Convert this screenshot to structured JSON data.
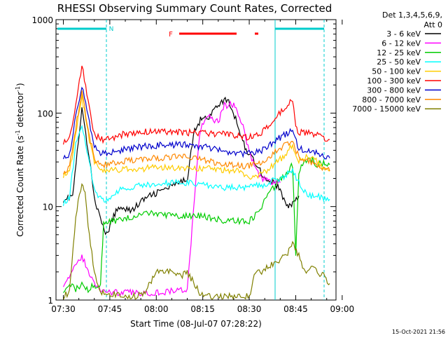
{
  "chart_data": {
    "type": "line",
    "title": "RHESSI Observing Summary Count Rates, Corrected",
    "xlabel": "Start Time (08-Jul-07 07:28:22)",
    "ylabel_main": "Corrected Count Rate (s",
    "ylabel_sup1": "-1",
    "ylabel_mid": " detector",
    "ylabel_sup2": "-1",
    "ylabel_end": ")",
    "y_scale": "log",
    "ylim": [
      1,
      1000
    ],
    "xlim_minutes": [
      -2.37,
      88.0
    ],
    "x_ticks": [
      {
        "label": "07:30",
        "min": 0
      },
      {
        "label": "07:45",
        "min": 15
      },
      {
        "label": "08:00",
        "min": 30
      },
      {
        "label": "08:15",
        "min": 45
      },
      {
        "label": "08:30",
        "min": 60
      },
      {
        "label": "08:45",
        "min": 75
      },
      {
        "label": "09:00",
        "min": 90
      }
    ],
    "y_ticks": [
      {
        "label": "1",
        "v": 1
      },
      {
        "label": "10",
        "v": 10
      },
      {
        "label": "100",
        "v": 100
      },
      {
        "label": "1000",
        "v": 1000
      }
    ],
    "legend_title": "Det 1,3,4,5,6,9,",
    "legend_subtitle": "Att 0",
    "legend_placement": "right",
    "series": [
      {
        "name": "3 - 6 keV",
        "color": "#000000",
        "x": [
          0,
          3,
          6,
          8,
          10,
          12,
          14,
          17,
          19,
          22,
          26,
          30,
          34,
          38,
          40,
          42,
          45,
          47,
          50,
          53,
          56,
          59,
          62,
          65,
          68,
          70,
          72,
          73,
          74,
          76
        ],
        "y": [
          12,
          13,
          110,
          40,
          13,
          7,
          5,
          9,
          10,
          9,
          12,
          14,
          16,
          18,
          20,
          60,
          95,
          90,
          125,
          140,
          80,
          40,
          30,
          20,
          18,
          15,
          10,
          10,
          11,
          13
        ]
      },
      {
        "name": "6 - 12 keV",
        "color": "#ff00ff",
        "x": [
          0,
          3,
          6,
          8,
          10,
          12,
          16,
          20,
          30,
          40,
          44,
          46,
          48,
          50,
          52,
          55,
          58,
          60,
          62,
          64,
          66,
          68,
          70
        ],
        "y": [
          1.5,
          2,
          3,
          2,
          1.5,
          1.3,
          1.2,
          1.2,
          1.2,
          1.3,
          60,
          95,
          85,
          80,
          120,
          125,
          70,
          40,
          25,
          20,
          19,
          18,
          18
        ]
      },
      {
        "name": "12 - 25 keV",
        "color": "#00cc00",
        "x": [
          0,
          2,
          4,
          6,
          8,
          10,
          11,
          12,
          13,
          16,
          20,
          24,
          28,
          32,
          36,
          40,
          44,
          48,
          52,
          56,
          60,
          62,
          64,
          66,
          68,
          70,
          72,
          74,
          75,
          76,
          78,
          80,
          82,
          84,
          86
        ],
        "y": [
          1.3,
          1.5,
          1.3,
          1.5,
          1.3,
          1.5,
          1.3,
          1.5,
          6.5,
          7,
          7.5,
          8,
          8.5,
          8,
          8,
          8,
          8,
          7.5,
          7,
          7,
          7,
          8,
          10,
          13,
          16,
          20,
          23,
          28,
          3,
          24,
          30,
          32,
          28,
          30,
          28
        ]
      },
      {
        "name": "25 - 50 keV",
        "color": "#00ffff",
        "x": [
          0,
          2,
          4,
          6,
          8,
          10,
          12,
          14,
          18,
          22,
          26,
          30,
          34,
          38,
          42,
          46,
          50,
          54,
          58,
          62,
          64,
          66,
          68,
          70,
          72,
          74,
          76,
          78,
          80,
          82,
          84,
          86
        ],
        "y": [
          11,
          12,
          50,
          75,
          35,
          15,
          12,
          12,
          15,
          16,
          17,
          17,
          18,
          18,
          18,
          17,
          16,
          16,
          16,
          17,
          17,
          18,
          19,
          20,
          22,
          25,
          18,
          14,
          13,
          13,
          12,
          12
        ]
      },
      {
        "name": "50 - 100 keV",
        "color": "#ffcc00",
        "x": [
          0,
          2,
          4,
          6,
          8,
          10,
          12,
          14,
          20,
          30,
          40,
          50,
          56,
          58,
          60,
          62,
          64,
          66,
          68,
          70,
          72,
          74,
          76,
          78,
          80,
          82,
          84,
          86
        ],
        "y": [
          22,
          24,
          60,
          150,
          60,
          30,
          24,
          24,
          25,
          26,
          26,
          25,
          24,
          22,
          20,
          21,
          22,
          25,
          28,
          32,
          38,
          45,
          30,
          34,
          33,
          30,
          26,
          24
        ]
      },
      {
        "name": "100 - 300 keV",
        "color": "#ff0000",
        "x": [
          0,
          2,
          4,
          6,
          8,
          10,
          12,
          14,
          16,
          20,
          25,
          30,
          35,
          40,
          45,
          50,
          55,
          60,
          62,
          64,
          66,
          68,
          70,
          72,
          74,
          75,
          76,
          78,
          80,
          82,
          84,
          86
        ],
        "y": [
          50,
          55,
          120,
          320,
          140,
          60,
          52,
          52,
          55,
          60,
          63,
          64,
          63,
          62,
          62,
          60,
          58,
          55,
          57,
          62,
          70,
          85,
          100,
          115,
          140,
          70,
          62,
          62,
          60,
          58,
          55,
          52
        ]
      },
      {
        "name": "300 - 800 keV",
        "color": "#0000cc",
        "x": [
          0,
          2,
          4,
          6,
          8,
          10,
          12,
          14,
          18,
          22,
          26,
          30,
          34,
          38,
          42,
          46,
          50,
          54,
          58,
          62,
          64,
          66,
          68,
          70,
          72,
          74,
          76,
          78,
          80,
          82,
          84,
          86
        ],
        "y": [
          35,
          36,
          90,
          200,
          90,
          45,
          38,
          38,
          40,
          42,
          44,
          45,
          46,
          46,
          45,
          43,
          40,
          38,
          37,
          38,
          40,
          44,
          50,
          55,
          60,
          65,
          42,
          40,
          38,
          37,
          35,
          33
        ]
      },
      {
        "name": "800 - 7000 keV",
        "color": "#ff8800",
        "x": [
          0,
          2,
          4,
          6,
          8,
          10,
          12,
          14,
          18,
          22,
          26,
          30,
          34,
          38,
          42,
          46,
          50,
          54,
          58,
          62,
          64,
          66,
          68,
          70,
          72,
          74,
          76,
          78,
          80,
          82,
          84,
          86
        ],
        "y": [
          24,
          26,
          70,
          170,
          70,
          32,
          28,
          28,
          30,
          31,
          32,
          33,
          34,
          34,
          33,
          31,
          29,
          28,
          27,
          28,
          30,
          33,
          38,
          42,
          46,
          50,
          34,
          32,
          30,
          28,
          26,
          24
        ]
      },
      {
        "name": "7000 - 15000 keV",
        "color": "#808000",
        "x": [
          0,
          2,
          4,
          6,
          7,
          8,
          10,
          12,
          14,
          20,
          24,
          26,
          30,
          34,
          38,
          40,
          44,
          48,
          52,
          56,
          60,
          62,
          64,
          68,
          72,
          74,
          76,
          78,
          80,
          82,
          84,
          86
        ],
        "y": [
          1.1,
          1.2,
          8,
          18,
          15,
          6,
          2,
          1.2,
          1.2,
          1.1,
          1.1,
          1.2,
          2,
          2,
          1.8,
          2,
          1.2,
          1.1,
          1.1,
          1.1,
          1.1,
          2,
          2,
          2.5,
          3,
          4,
          3,
          2,
          2.2,
          2,
          1.8,
          1.5
        ]
      }
    ],
    "markers": {
      "night_label": "N",
      "flare_label": "F"
    }
  },
  "footer": {
    "timestamp": "15-Oct-2021 21:56"
  }
}
